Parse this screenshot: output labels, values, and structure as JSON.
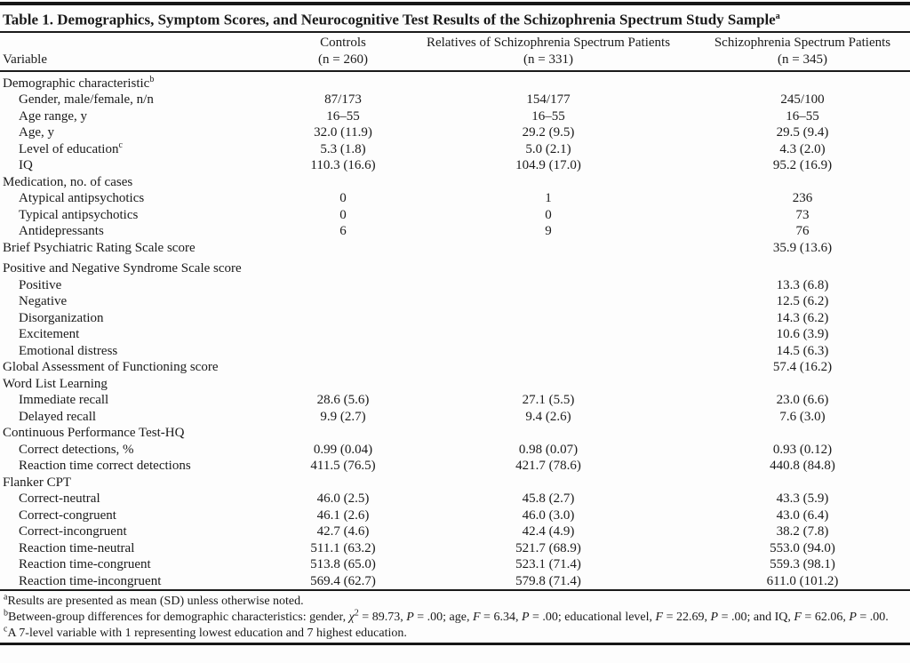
{
  "title": {
    "text": "Table 1. Demographics, Symptom Scores, and Neurocognitive Test Results of the Schizophrenia Spectrum Study Sample",
    "sup": "a"
  },
  "table": {
    "columns": [
      {
        "label": "Variable"
      },
      {
        "name": "Controls",
        "n": "(n = 260)"
      },
      {
        "name": "Relatives of Schizophrenia Spectrum Patients",
        "n": "(n = 331)"
      },
      {
        "name": "Schizophrenia Spectrum Patients",
        "n": "(n = 345)"
      }
    ],
    "rows": [
      {
        "label": "Demographic characteristic",
        "sup": "b",
        "indent": 0,
        "values": [
          "",
          "",
          ""
        ]
      },
      {
        "label": "Gender, male/female, n/n",
        "indent": 1,
        "values": [
          "87/173",
          "154/177",
          "245/100"
        ]
      },
      {
        "label": "Age range, y",
        "indent": 1,
        "values": [
          "16–55",
          "16–55",
          "16–55"
        ]
      },
      {
        "label": "Age, y",
        "indent": 1,
        "values": [
          "32.0 (11.9)",
          "29.2 (9.5)",
          "29.5 (9.4)"
        ]
      },
      {
        "label": "Level of education",
        "sup": "c",
        "indent": 1,
        "values": [
          "5.3 (1.8)",
          "5.0 (2.1)",
          "4.3 (2.0)"
        ]
      },
      {
        "label": "IQ",
        "indent": 1,
        "values": [
          "110.3 (16.6)",
          "104.9 (17.0)",
          "95.2 (16.9)"
        ]
      },
      {
        "label": "Medication, no. of cases",
        "indent": 0,
        "values": [
          "",
          "",
          ""
        ]
      },
      {
        "label": "Atypical antipsychotics",
        "indent": 1,
        "values": [
          "0",
          "1",
          "236"
        ]
      },
      {
        "label": "Typical antipsychotics",
        "indent": 1,
        "values": [
          "0",
          "0",
          "73"
        ]
      },
      {
        "label": "Antidepressants",
        "indent": 1,
        "values": [
          "6",
          "9",
          "76"
        ]
      },
      {
        "label": "Brief Psychiatric Rating Scale score",
        "indent": 0,
        "values": [
          "",
          "",
          "35.9 (13.6)"
        ]
      },
      {
        "label": "Positive and Negative Syndrome Scale score",
        "indent": 0,
        "extra_space": true,
        "values": [
          "",
          "",
          ""
        ]
      },
      {
        "label": "Positive",
        "indent": 1,
        "values": [
          "",
          "",
          "13.3 (6.8)"
        ]
      },
      {
        "label": "Negative",
        "indent": 1,
        "values": [
          "",
          "",
          "12.5 (6.2)"
        ]
      },
      {
        "label": "Disorganization",
        "indent": 1,
        "values": [
          "",
          "",
          "14.3 (6.2)"
        ]
      },
      {
        "label": "Excitement",
        "indent": 1,
        "values": [
          "",
          "",
          "10.6 (3.9)"
        ]
      },
      {
        "label": "Emotional distress",
        "indent": 1,
        "values": [
          "",
          "",
          "14.5 (6.3)"
        ]
      },
      {
        "label": "Global Assessment of Functioning score",
        "indent": 0,
        "values": [
          "",
          "",
          "57.4 (16.2)"
        ]
      },
      {
        "label": "Word List Learning",
        "indent": 0,
        "values": [
          "",
          "",
          ""
        ]
      },
      {
        "label": "Immediate recall",
        "indent": 1,
        "values": [
          "28.6 (5.6)",
          "27.1 (5.5)",
          "23.0 (6.6)"
        ]
      },
      {
        "label": "Delayed recall",
        "indent": 1,
        "values": [
          "9.9 (2.7)",
          "9.4 (2.6)",
          "7.6 (3.0)"
        ]
      },
      {
        "label": "Continuous Performance Test-HQ",
        "indent": 0,
        "values": [
          "",
          "",
          ""
        ]
      },
      {
        "label": "Correct detections, %",
        "indent": 1,
        "values": [
          "0.99 (0.04)",
          "0.98 (0.07)",
          "0.93 (0.12)"
        ]
      },
      {
        "label": "Reaction time correct detections",
        "indent": 1,
        "values": [
          "411.5 (76.5)",
          "421.7 (78.6)",
          "440.8 (84.8)"
        ]
      },
      {
        "label": "Flanker CPT",
        "indent": 0,
        "values": [
          "",
          "",
          ""
        ]
      },
      {
        "label": "Correct-neutral",
        "indent": 1,
        "values": [
          "46.0 (2.5)",
          "45.8 (2.7)",
          "43.3 (5.9)"
        ]
      },
      {
        "label": "Correct-congruent",
        "indent": 1,
        "values": [
          "46.1 (2.6)",
          "46.0 (3.0)",
          "43.0 (6.4)"
        ]
      },
      {
        "label": "Correct-incongruent",
        "indent": 1,
        "values": [
          "42.7 (4.6)",
          "42.4 (4.9)",
          "38.2 (7.8)"
        ]
      },
      {
        "label": "Reaction time-neutral",
        "indent": 1,
        "values": [
          "511.1 (63.2)",
          "521.7 (68.9)",
          "553.0 (94.0)"
        ]
      },
      {
        "label": "Reaction time-congruent",
        "indent": 1,
        "values": [
          "513.8 (65.0)",
          "523.1 (71.4)",
          "559.3 (98.1)"
        ]
      },
      {
        "label": "Reaction time-incongruent",
        "indent": 1,
        "values": [
          "569.4 (62.7)",
          "579.8 (71.4)",
          "611.0 (101.2)"
        ]
      }
    ]
  },
  "footnotes": {
    "a": {
      "sup": "a",
      "text": "Results are presented as mean (SD) unless otherwise noted."
    },
    "b": {
      "segments": [
        "b",
        "Between-group differences for demographic characteristics: gender, ",
        "χ",
        "2",
        " = 89.73, ",
        "P",
        " = .00; age, ",
        "F",
        " = 6.34, ",
        "P",
        " = .00; educational level, ",
        "F",
        " = 22.69, ",
        "P",
        " = .00; and IQ, ",
        "F",
        " = 62.06, ",
        "P",
        " = .00."
      ]
    },
    "c": {
      "sup": "c",
      "text": "A 7-level variable with 1 representing lowest education and 7 highest education."
    }
  },
  "colors": {
    "text": "#1a1a1a",
    "rule": "#1a1a1a",
    "background": "#fdfdfd"
  }
}
